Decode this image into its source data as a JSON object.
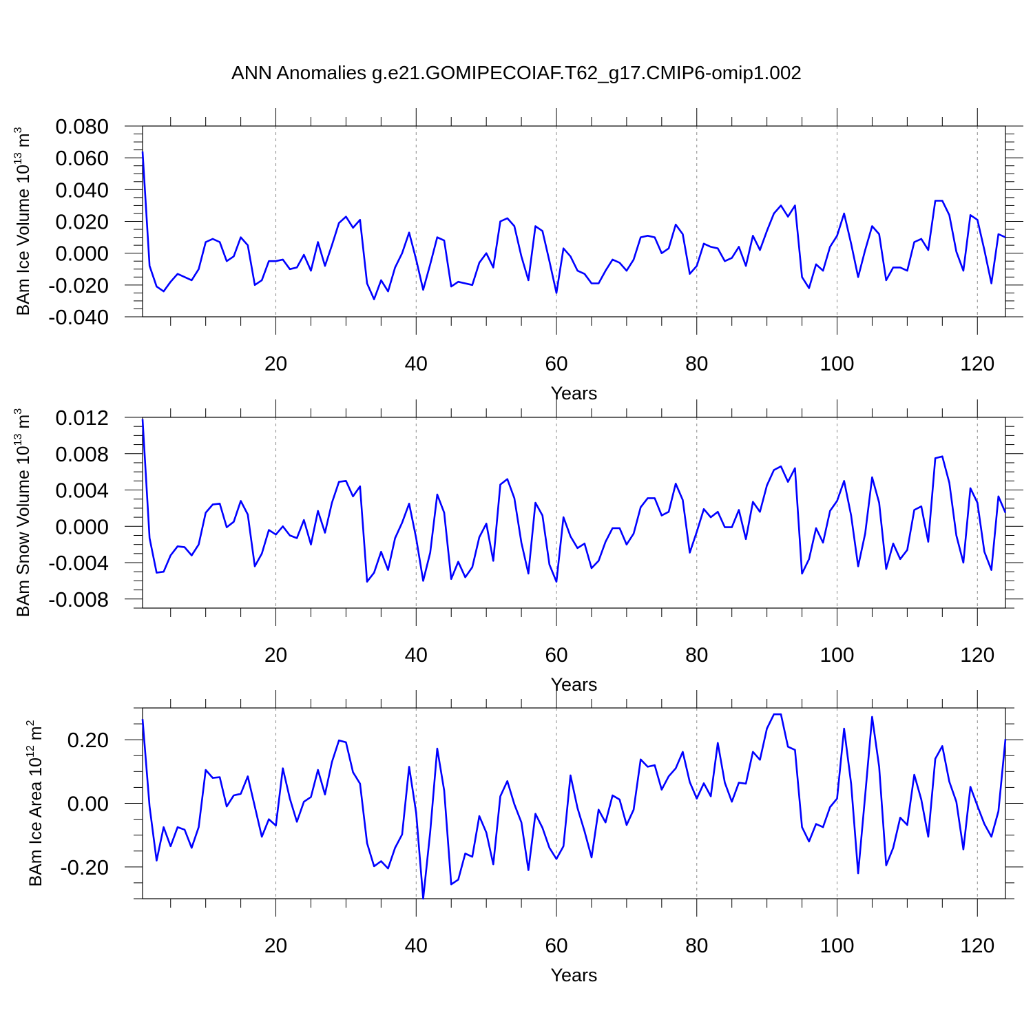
{
  "figure": {
    "title": "ANN Anomalies g.e21.GOMIPECOIAF.T62_g17.CMIP6-omip1.002",
    "line_color": "#0000ff",
    "grid_color": "#888888"
  },
  "chart_data": [
    {
      "type": "line",
      "ylabel": "BAm Ice Volume 10",
      "ylabel_exp": "13",
      "ylabel_unit": " m",
      "ylabel_unit_exp": "3",
      "xlabel": "Years",
      "xlim": [
        1,
        124
      ],
      "ylim": [
        -0.04,
        0.08
      ],
      "x_ticks": [
        20,
        40,
        60,
        80,
        100,
        120
      ],
      "x_tick_labels": [
        "20",
        "40",
        "60",
        "80",
        "100",
        "120"
      ],
      "y_ticks": [
        -0.04,
        -0.02,
        0.0,
        0.02,
        0.04,
        0.06,
        0.08
      ],
      "y_tick_labels": [
        "-0.040",
        "-0.020",
        "0.000",
        "0.020",
        "0.040",
        "0.060",
        "0.080"
      ],
      "x_start": 1,
      "values": [
        0.064,
        -0.008,
        -0.021,
        -0.024,
        -0.018,
        -0.013,
        -0.015,
        -0.017,
        -0.01,
        0.007,
        0.009,
        0.007,
        -0.005,
        -0.002,
        0.01,
        0.005,
        -0.02,
        -0.017,
        -0.005,
        -0.005,
        -0.004,
        -0.01,
        -0.009,
        -0.001,
        -0.011,
        0.007,
        -0.008,
        0.005,
        0.019,
        0.023,
        0.016,
        0.021,
        -0.019,
        -0.029,
        -0.017,
        -0.024,
        -0.009,
        0.0,
        0.013,
        -0.004,
        -0.023,
        -0.007,
        0.01,
        0.008,
        -0.021,
        -0.018,
        -0.019,
        -0.02,
        -0.006,
        0.0,
        -0.009,
        0.02,
        0.022,
        0.017,
        -0.002,
        -0.017,
        0.017,
        0.014,
        -0.005,
        -0.025,
        0.003,
        -0.002,
        -0.011,
        -0.013,
        -0.019,
        -0.019,
        -0.011,
        -0.004,
        -0.006,
        -0.011,
        -0.004,
        0.01,
        0.011,
        0.01,
        0.0,
        0.003,
        0.018,
        0.012,
        -0.013,
        -0.008,
        0.006,
        0.004,
        0.003,
        -0.005,
        -0.003,
        0.004,
        -0.008,
        0.011,
        0.002,
        0.014,
        0.025,
        0.03,
        0.023,
        0.03,
        -0.015,
        -0.022,
        -0.007,
        -0.011,
        0.004,
        0.011,
        0.025,
        0.006,
        -0.015,
        0.002,
        0.017,
        0.012,
        -0.017,
        -0.009,
        -0.009,
        -0.011,
        0.007,
        0.009,
        0.002,
        0.033,
        0.033,
        0.024,
        0.001,
        -0.011,
        0.024,
        0.021,
        0.002,
        -0.019,
        0.012,
        0.01
      ]
    },
    {
      "type": "line",
      "ylabel": "BAm Snow Volume 10",
      "ylabel_exp": "13",
      "ylabel_unit": " m",
      "ylabel_unit_exp": "3",
      "xlabel": "Years",
      "xlim": [
        1,
        124
      ],
      "ylim": [
        -0.009,
        0.012
      ],
      "x_ticks": [
        20,
        40,
        60,
        80,
        100,
        120
      ],
      "x_tick_labels": [
        "20",
        "40",
        "60",
        "80",
        "100",
        "120"
      ],
      "y_ticks": [
        -0.008,
        -0.004,
        0.0,
        0.004,
        0.008,
        0.012
      ],
      "y_tick_labels": [
        "-0.008",
        "-0.004",
        "0.000",
        "0.004",
        "0.008",
        "0.012"
      ],
      "x_start": 1,
      "values": [
        0.0118,
        -0.0013,
        -0.0051,
        -0.005,
        -0.0032,
        -0.0022,
        -0.0023,
        -0.0032,
        -0.002,
        0.0015,
        0.0024,
        0.0025,
        -0.0001,
        0.0005,
        0.0028,
        0.0013,
        -0.0044,
        -0.003,
        -0.0004,
        -0.0009,
        0.0,
        -0.001,
        -0.0013,
        0.0007,
        -0.002,
        0.0017,
        -0.0007,
        0.0026,
        0.0049,
        0.005,
        0.0033,
        0.0044,
        -0.0061,
        -0.0051,
        -0.0028,
        -0.0048,
        -0.0013,
        0.0004,
        0.0025,
        -0.0013,
        -0.006,
        -0.0029,
        0.0035,
        0.0015,
        -0.0058,
        -0.0039,
        -0.0056,
        -0.0045,
        -0.0012,
        0.0003,
        -0.0038,
        0.0046,
        0.0052,
        0.0031,
        -0.0018,
        -0.0052,
        0.0026,
        0.0012,
        -0.0042,
        -0.0061,
        0.001,
        -0.0011,
        -0.0024,
        -0.0019,
        -0.0046,
        -0.0038,
        -0.0017,
        -0.0002,
        -0.0002,
        -0.002,
        -0.0008,
        0.0021,
        0.0031,
        0.0031,
        0.0012,
        0.0016,
        0.0047,
        0.0029,
        -0.0029,
        -0.0006,
        0.0019,
        0.001,
        0.0016,
        -0.0001,
        -0.0001,
        0.0018,
        -0.0014,
        0.0027,
        0.0016,
        0.0045,
        0.0062,
        0.0066,
        0.0049,
        0.0064,
        -0.0052,
        -0.0036,
        -0.0002,
        -0.0018,
        0.0017,
        0.0028,
        0.005,
        0.0012,
        -0.0044,
        -0.0008,
        0.0054,
        0.0026,
        -0.0047,
        -0.0019,
        -0.0036,
        -0.0026,
        0.0018,
        0.0022,
        -0.0017,
        0.0075,
        0.0077,
        0.0048,
        -0.001,
        -0.004,
        0.0042,
        0.0026,
        -0.0028,
        -0.0048,
        0.0033,
        0.0015
      ]
    },
    {
      "type": "line",
      "ylabel": "BAm Ice Area 10",
      "ylabel_exp": "12",
      "ylabel_unit": " m",
      "ylabel_unit_exp": "2",
      "xlabel": "Years",
      "xlim": [
        1,
        124
      ],
      "ylim": [
        -0.3,
        0.3
      ],
      "x_ticks": [
        20,
        40,
        60,
        80,
        100,
        120
      ],
      "x_tick_labels": [
        "20",
        "40",
        "60",
        "80",
        "100",
        "120"
      ],
      "y_ticks": [
        -0.2,
        0.0,
        0.2
      ],
      "y_tick_labels": [
        "-0.20",
        "0.00",
        "0.20"
      ],
      "x_start": 1,
      "values": [
        0.265,
        -0.01,
        -0.18,
        -0.075,
        -0.135,
        -0.075,
        -0.083,
        -0.14,
        -0.075,
        0.105,
        0.08,
        0.082,
        -0.01,
        0.025,
        0.03,
        0.085,
        -0.01,
        -0.105,
        -0.05,
        -0.07,
        0.11,
        0.015,
        -0.058,
        0.005,
        0.02,
        0.105,
        0.028,
        0.13,
        0.198,
        0.192,
        0.098,
        0.062,
        -0.125,
        -0.198,
        -0.182,
        -0.205,
        -0.14,
        -0.098,
        0.115,
        -0.03,
        -0.3,
        -0.09,
        0.172,
        0.04,
        -0.255,
        -0.24,
        -0.158,
        -0.168,
        -0.04,
        -0.092,
        -0.192,
        0.022,
        0.07,
        -0.003,
        -0.06,
        -0.21,
        -0.033,
        -0.077,
        -0.14,
        -0.175,
        -0.135,
        0.088,
        -0.015,
        -0.088,
        -0.17,
        -0.02,
        -0.06,
        0.025,
        0.012,
        -0.068,
        -0.02,
        0.138,
        0.115,
        0.12,
        0.043,
        0.085,
        0.11,
        0.162,
        0.067,
        0.015,
        0.063,
        0.022,
        0.19,
        0.065,
        0.005,
        0.065,
        0.062,
        0.162,
        0.137,
        0.235,
        0.28,
        0.28,
        0.178,
        0.168,
        -0.075,
        -0.12,
        -0.065,
        -0.075,
        -0.012,
        0.015,
        0.235,
        0.062,
        -0.22,
        0.025,
        0.272,
        0.115,
        -0.195,
        -0.14,
        -0.045,
        -0.068,
        0.09,
        0.012,
        -0.105,
        0.14,
        0.18,
        0.068,
        0.005,
        -0.145,
        0.052,
        -0.008,
        -0.065,
        -0.105,
        -0.025,
        0.202
      ]
    }
  ]
}
